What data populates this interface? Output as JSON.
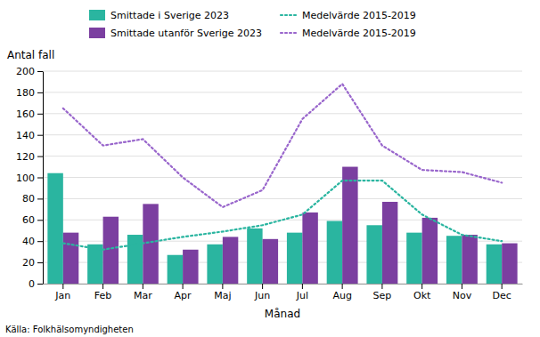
{
  "chart_data": {
    "type": "bar",
    "x_label": "Månad",
    "y_label": "Antal fall",
    "annotations": [
      "Källa: Folkhälsomyndigheten"
    ],
    "categories": [
      "Jan",
      "Feb",
      "Mar",
      "Apr",
      "Maj",
      "Jun",
      "Jul",
      "Aug",
      "Sep",
      "Okt",
      "Nov",
      "Dec"
    ],
    "series": [
      {
        "name": "Smittade i Sverige 2023",
        "type": "bar",
        "color": "#2ab5a0",
        "values": [
          104,
          37,
          46,
          27,
          37,
          52,
          48,
          59,
          55,
          48,
          45,
          37
        ]
      },
      {
        "name": "Smittade utanför Sverige 2023",
        "type": "bar",
        "color": "#7b3fa0",
        "values": [
          48,
          63,
          75,
          32,
          44,
          42,
          67,
          110,
          77,
          62,
          46,
          38
        ]
      },
      {
        "name": "Medelvärde 2015-2019",
        "type": "line",
        "line_style": "dotted",
        "color": "#2ab5a0",
        "values": [
          38,
          32,
          38,
          44,
          49,
          55,
          65,
          97,
          97,
          65,
          46,
          40
        ]
      },
      {
        "name": "Medelvärde 2015-2019",
        "type": "line",
        "line_style": "dotted",
        "color": "#9966cc",
        "values": [
          165,
          130,
          136,
          100,
          72,
          88,
          155,
          188,
          130,
          107,
          105,
          95
        ]
      }
    ],
    "ylim": [
      0,
      200
    ],
    "yticks": [
      0,
      20,
      40,
      60,
      80,
      100,
      120,
      140,
      160,
      180,
      200
    ],
    "grid": true,
    "legend": "top"
  }
}
